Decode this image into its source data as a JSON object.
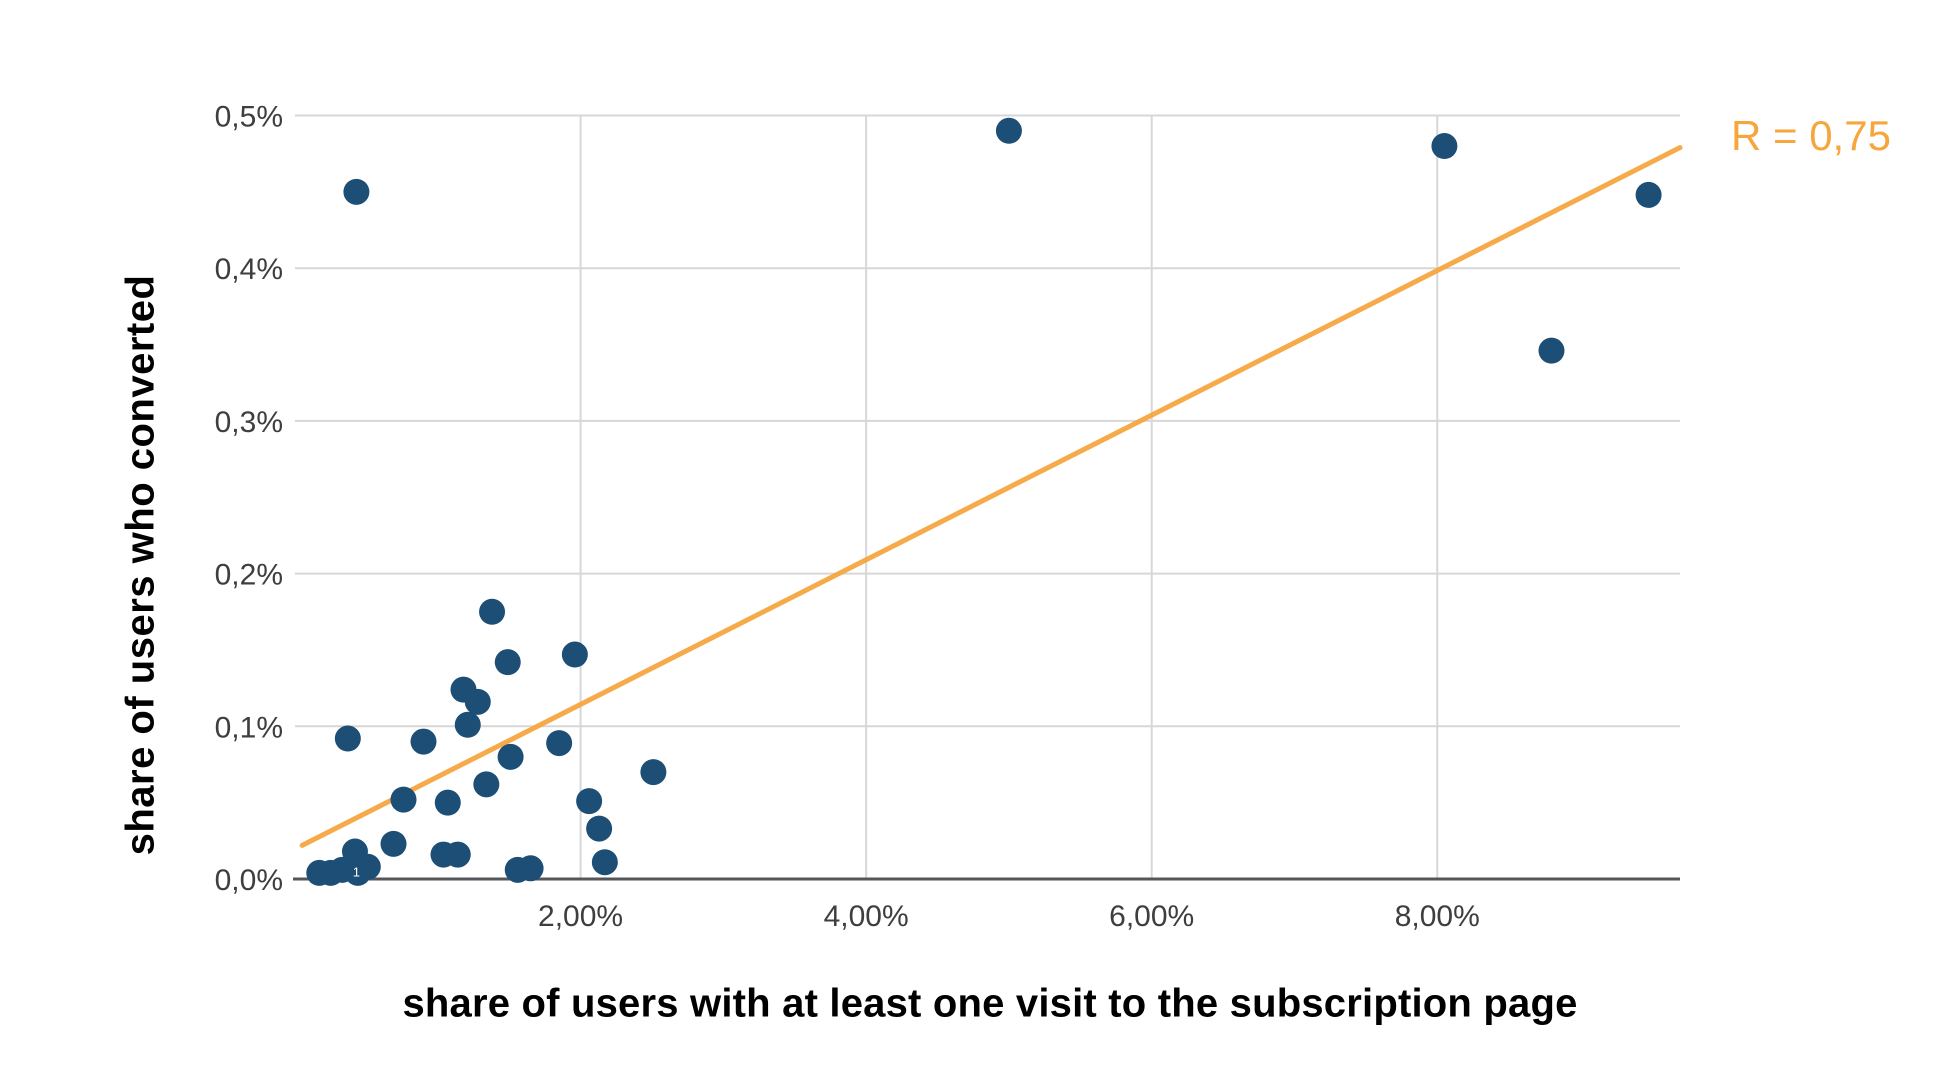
{
  "chart_data": {
    "type": "scatter",
    "title": "",
    "xlabel": "share of users with at least one visit to the subscription page",
    "ylabel": "share of users who converted",
    "x_unit": "%",
    "y_unit": "%",
    "xlim": [
      0,
      9.7
    ],
    "ylim": [
      0,
      0.5
    ],
    "grid": true,
    "x_ticks": [
      {
        "value": 2,
        "label": "2,00%"
      },
      {
        "value": 4,
        "label": "4,00%"
      },
      {
        "value": 6,
        "label": "6,00%"
      },
      {
        "value": 8,
        "label": "8,00%"
      }
    ],
    "y_ticks": [
      {
        "value": 0.0,
        "label": "0,0%"
      },
      {
        "value": 0.1,
        "label": "0,1%"
      },
      {
        "value": 0.2,
        "label": "0,2%"
      },
      {
        "value": 0.3,
        "label": "0,3%"
      },
      {
        "value": 0.4,
        "label": "0,4%"
      },
      {
        "value": 0.5,
        "label": "0,5%"
      }
    ],
    "points": [
      [
        0.43,
        0.45
      ],
      [
        5.0,
        0.49
      ],
      [
        8.05,
        0.48
      ],
      [
        9.48,
        0.448
      ],
      [
        8.8,
        0.346
      ],
      [
        1.38,
        0.175
      ],
      [
        1.96,
        0.147
      ],
      [
        1.49,
        0.142
      ],
      [
        1.18,
        0.124
      ],
      [
        1.28,
        0.116
      ],
      [
        1.21,
        0.101
      ],
      [
        0.37,
        0.092
      ],
      [
        0.9,
        0.09
      ],
      [
        1.85,
        0.089
      ],
      [
        1.51,
        0.08
      ],
      [
        1.34,
        0.062
      ],
      [
        0.76,
        0.052
      ],
      [
        1.07,
        0.05
      ],
      [
        2.51,
        0.07
      ],
      [
        2.06,
        0.051
      ],
      [
        2.13,
        0.033
      ],
      [
        2.17,
        0.011
      ],
      [
        0.69,
        0.023
      ],
      [
        0.42,
        0.018
      ],
      [
        1.04,
        0.016
      ],
      [
        1.14,
        0.016
      ],
      [
        1.56,
        0.006
      ],
      [
        1.65,
        0.007
      ],
      [
        0.17,
        0.004
      ],
      [
        0.25,
        0.004
      ],
      [
        0.33,
        0.006
      ],
      [
        0.44,
        0.004
      ],
      [
        0.51,
        0.008
      ]
    ],
    "trendline": {
      "x1": 0.05,
      "y1": 0.022,
      "x2": 9.7,
      "y2": 0.479,
      "label": "R = 0,75",
      "r_value": "0,75"
    },
    "annotation": {
      "text": "1",
      "x": 0.43,
      "y": 0.005
    },
    "colors": {
      "point": "#1D4E75",
      "trendline": "#F6A640",
      "trend_label": "#F7A63E",
      "gridline": "#D7D7D7",
      "axis_line": "#55565A",
      "tick_text": "#3E3E3E",
      "axis_title_text": "#000000"
    }
  }
}
